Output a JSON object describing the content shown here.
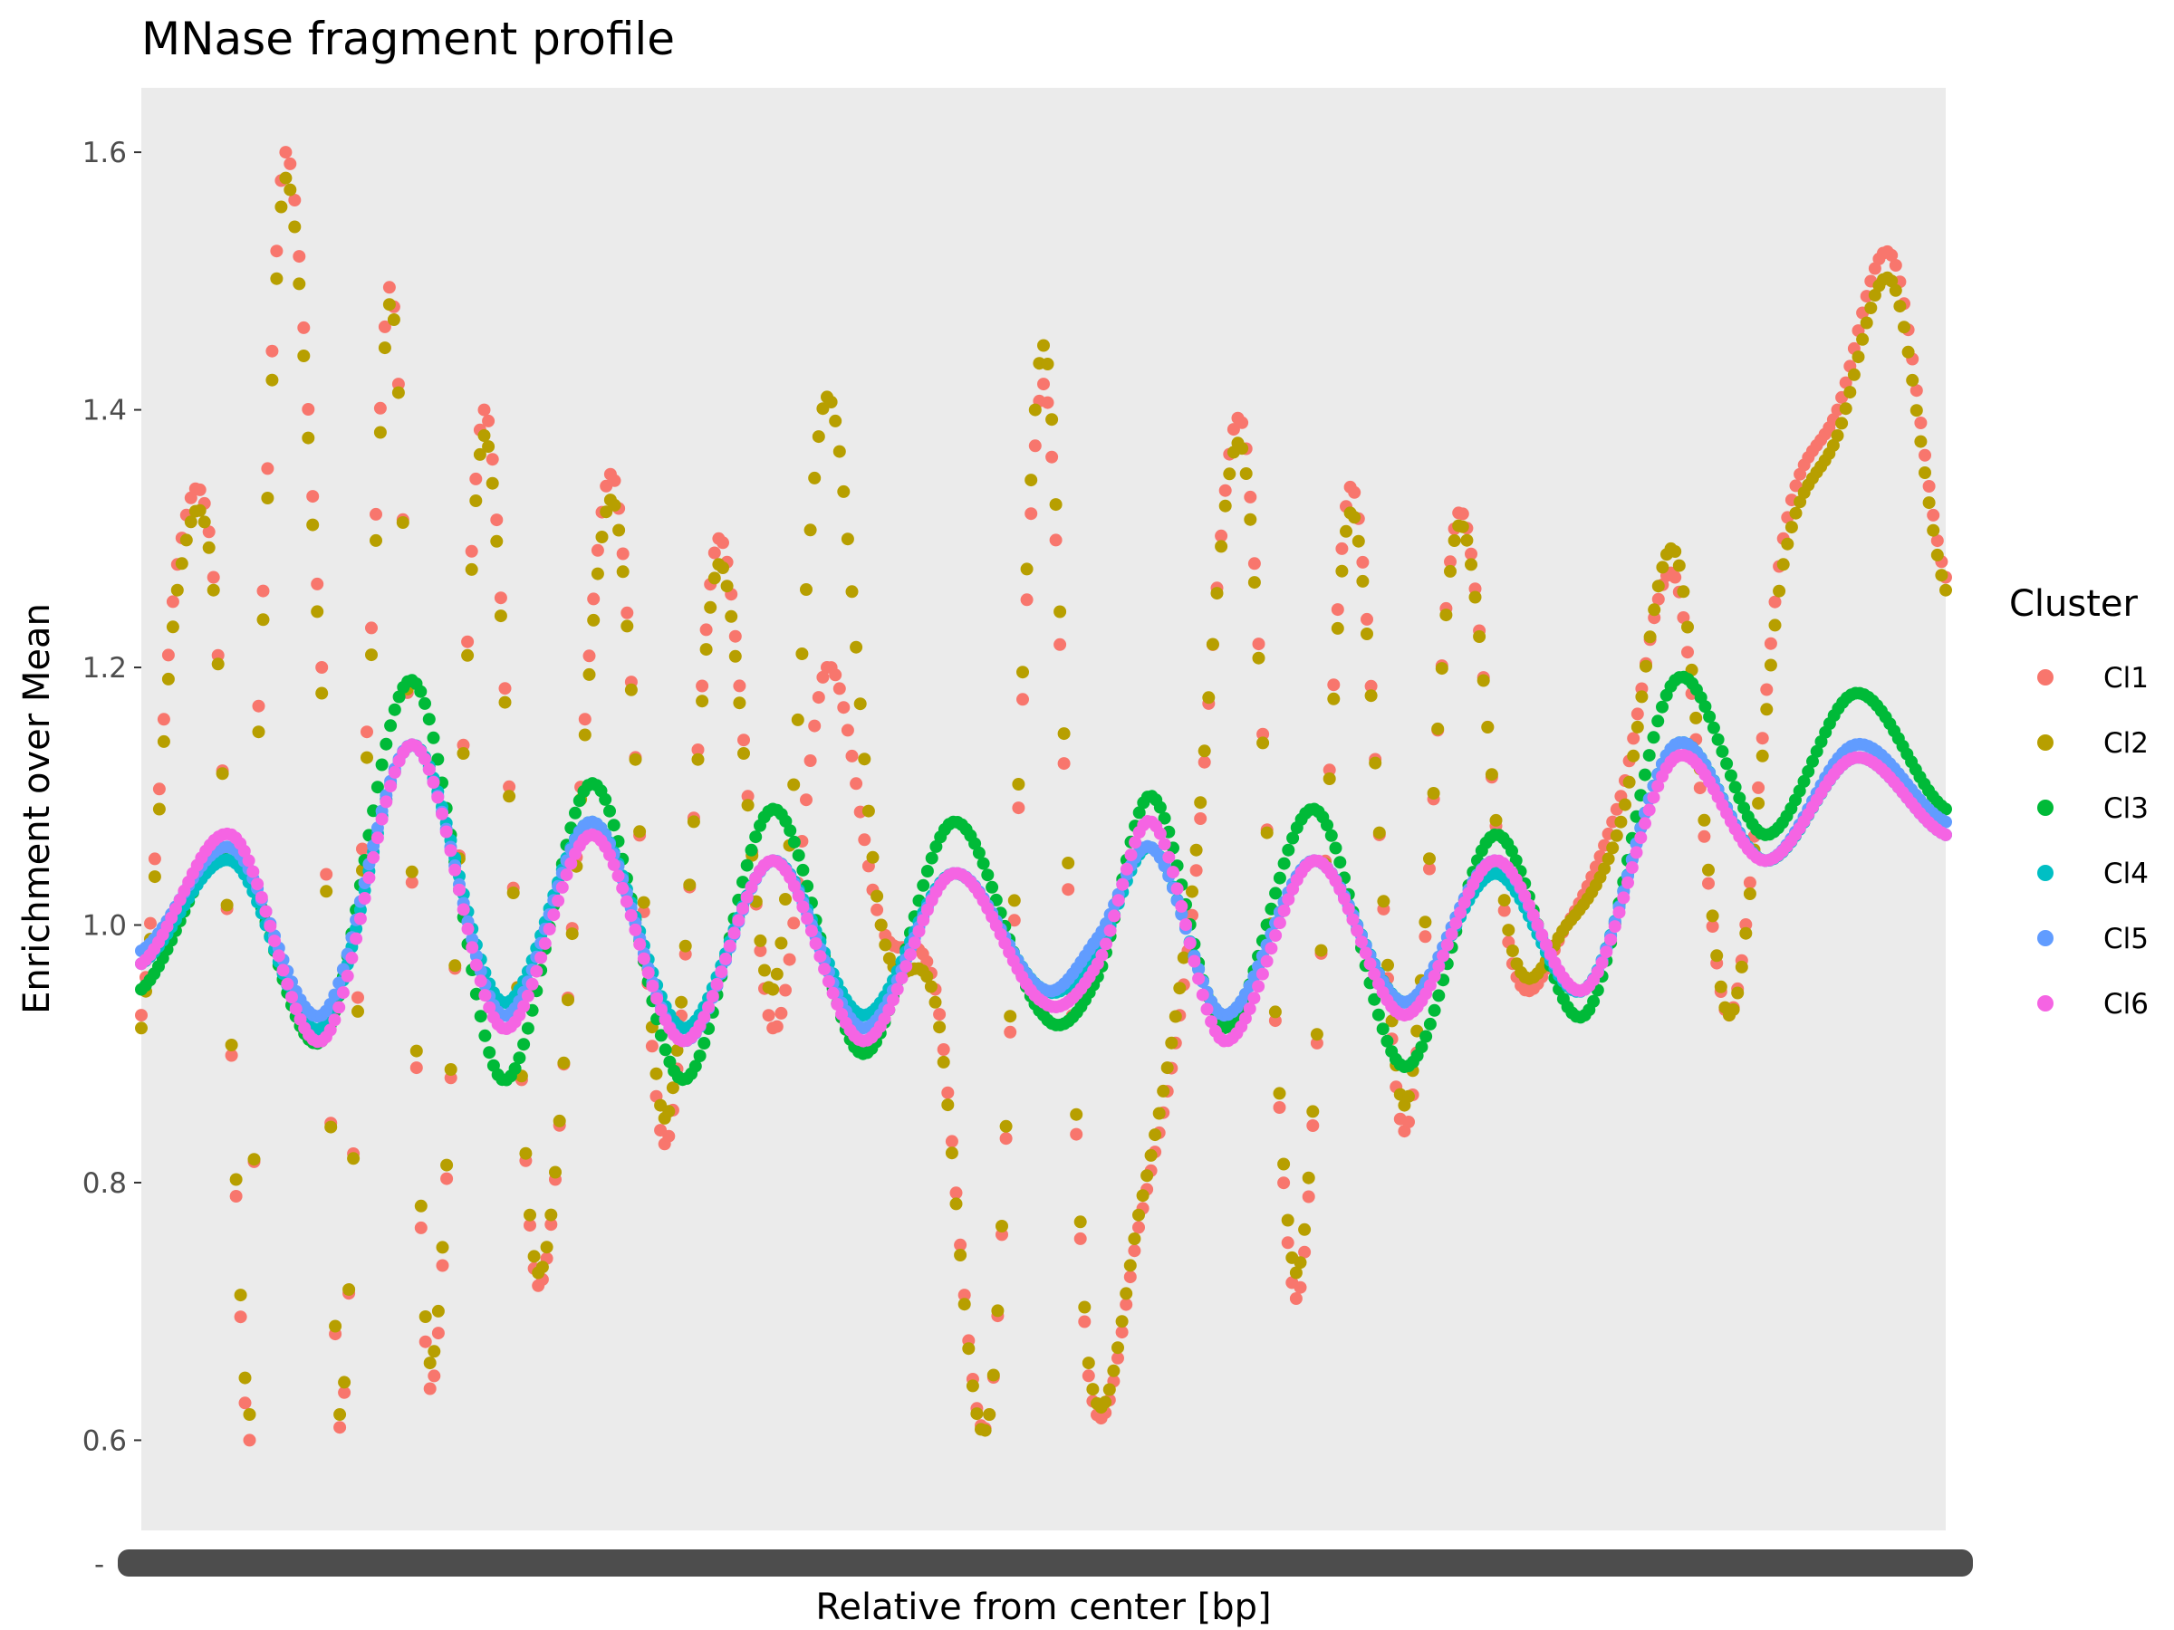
{
  "chart_data": {
    "type": "scatter",
    "title": "MNase fragment profile",
    "xlabel": "Relative from center [bp]",
    "ylabel": "Enrichment over Mean",
    "xlim": [
      0,
      1000
    ],
    "ylim": [
      0.53,
      1.65
    ],
    "yticks": [
      0.6,
      0.8,
      1.0,
      1.2,
      1.4,
      1.6
    ],
    "ytick_labels": [
      "0.6",
      "0.8",
      "1.0",
      "1.2",
      "1.4",
      "1.6"
    ],
    "xtick_label_left": "-",
    "x_tick_note": "x tick labels are overplotted and illegible",
    "grid": false,
    "legend": {
      "title": "Cluster",
      "position": "right"
    },
    "panel_background": "#ebebeb",
    "series": [
      {
        "name": "Cl1",
        "color": "#F8766D",
        "x": [
          0,
          20,
          40,
          60,
          65,
          80,
          100,
          110,
          125,
          140,
          160,
          190,
          220,
          260,
          290,
          320,
          350,
          380,
          410,
          440,
          470,
          500,
          525,
          555,
          580,
          610,
          640,
          670,
          700,
          730,
          760,
          790,
          820,
          850,
          880,
          910,
          940,
          970,
          1000
        ],
        "y": [
          0.93,
          1.28,
          1.27,
          0.6,
          1.17,
          1.6,
          1.2,
          0.61,
          1.15,
          1.48,
          0.64,
          1.4,
          0.72,
          1.35,
          0.83,
          1.3,
          0.92,
          1.2,
          1.0,
          0.95,
          0.62,
          1.42,
          0.65,
          0.78,
          0.98,
          1.39,
          0.71,
          1.34,
          0.84,
          1.32,
          0.97,
          1.0,
          1.1,
          1.27,
          0.93,
          1.3,
          1.4,
          1.52,
          1.27
        ]
      },
      {
        "name": "Cl2",
        "color": "#B79F00",
        "x": [
          0,
          20,
          40,
          60,
          65,
          80,
          100,
          110,
          125,
          140,
          160,
          190,
          220,
          260,
          290,
          320,
          350,
          380,
          410,
          440,
          470,
          500,
          525,
          555,
          580,
          610,
          640,
          670,
          700,
          730,
          760,
          790,
          820,
          850,
          880,
          910,
          940,
          970,
          1000
        ],
        "y": [
          0.92,
          1.26,
          1.26,
          0.62,
          1.15,
          1.58,
          1.18,
          0.62,
          1.13,
          1.47,
          0.66,
          1.38,
          0.73,
          1.33,
          0.85,
          1.28,
          0.95,
          1.41,
          1.0,
          0.94,
          0.62,
          1.45,
          0.66,
          0.79,
          1.0,
          1.37,
          0.73,
          1.32,
          0.86,
          1.31,
          0.98,
          1.0,
          1.08,
          1.29,
          0.93,
          1.28,
          1.38,
          1.5,
          1.26
        ]
      },
      {
        "name": "Cl3",
        "color": "#00BA38",
        "x": [
          0,
          50,
          100,
          150,
          200,
          250,
          300,
          350,
          400,
          450,
          500,
          530,
          560,
          600,
          650,
          700,
          750,
          800,
          850,
          900,
          950,
          1000
        ],
        "y": [
          0.95,
          1.06,
          0.91,
          1.19,
          0.88,
          1.11,
          0.88,
          1.09,
          0.9,
          1.08,
          0.93,
          0.96,
          1.1,
          0.92,
          1.09,
          0.89,
          1.07,
          0.93,
          1.19,
          1.07,
          1.18,
          1.09
        ]
      },
      {
        "name": "Cl4",
        "color": "#00BFC4",
        "x": [
          0,
          50,
          100,
          150,
          200,
          250,
          300,
          350,
          400,
          450,
          500,
          530,
          560,
          600,
          650,
          700,
          750,
          800,
          850,
          900,
          950,
          1000
        ],
        "y": [
          0.97,
          1.05,
          0.92,
          1.14,
          0.94,
          1.08,
          0.92,
          1.05,
          0.93,
          1.04,
          0.95,
          0.98,
          1.06,
          0.93,
          1.05,
          0.94,
          1.04,
          0.95,
          1.14,
          1.05,
          1.13,
          1.07
        ]
      },
      {
        "name": "Cl5",
        "color": "#619CFF",
        "x": [
          0,
          50,
          100,
          150,
          200,
          250,
          300,
          350,
          400,
          450,
          500,
          530,
          560,
          600,
          650,
          700,
          750,
          800,
          850,
          900,
          950,
          1000
        ],
        "y": [
          0.98,
          1.06,
          0.93,
          1.14,
          0.93,
          1.08,
          0.91,
          1.05,
          0.92,
          1.04,
          0.95,
          0.99,
          1.06,
          0.93,
          1.05,
          0.94,
          1.05,
          0.95,
          1.14,
          1.05,
          1.14,
          1.08
        ]
      },
      {
        "name": "Cl6",
        "color": "#F564E3",
        "x": [
          0,
          50,
          100,
          150,
          200,
          250,
          300,
          350,
          400,
          450,
          500,
          530,
          560,
          600,
          650,
          700,
          750,
          800,
          850,
          900,
          950,
          1000
        ],
        "y": [
          0.97,
          1.07,
          0.91,
          1.14,
          0.92,
          1.07,
          0.91,
          1.05,
          0.91,
          1.04,
          0.94,
          0.97,
          1.08,
          0.91,
          1.05,
          0.93,
          1.05,
          0.95,
          1.13,
          1.05,
          1.13,
          1.07
        ]
      }
    ]
  }
}
